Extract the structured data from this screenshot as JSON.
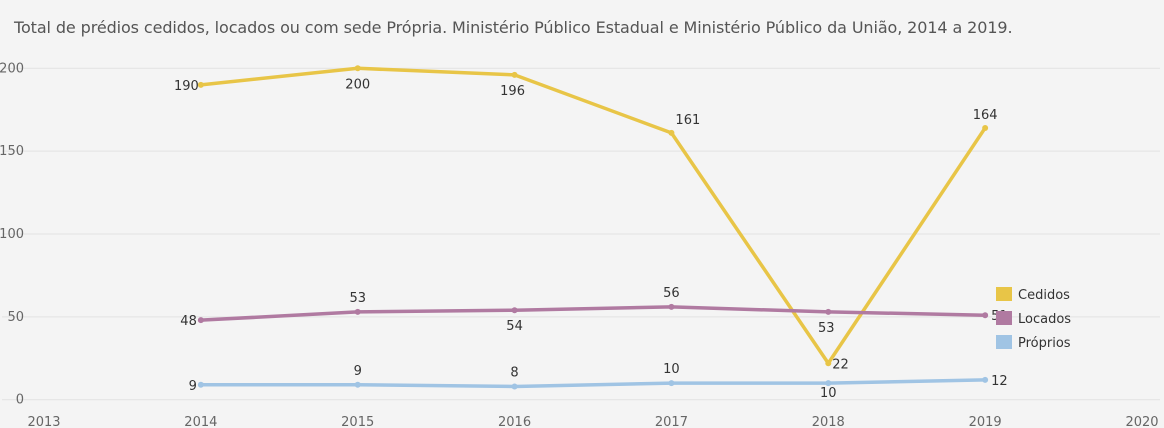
{
  "title": "Total de prédios cedidos, locados ou com sede Própria. Ministério Público Estadual e Ministério Público da União, 2014 a 2019.",
  "chart_data": {
    "type": "line",
    "title": "Total de prédios cedidos, locados ou com sede Própria. Ministério Público Estadual e Ministério Público da União, 2014 a 2019.",
    "xlabel": "",
    "ylabel": "",
    "x": [
      2014,
      2015,
      2016,
      2017,
      2018,
      2019
    ],
    "x_ticks": [
      "2013",
      "2014",
      "2015",
      "2016",
      "2017",
      "2018",
      "2019",
      "2020"
    ],
    "xlim": [
      2013,
      2020
    ],
    "y_ticks": [
      "0",
      "50",
      "100",
      "150",
      "200"
    ],
    "ylim": [
      -5,
      205
    ],
    "grid": true,
    "legend_position": "right",
    "series": [
      {
        "name": "Cedidos",
        "color": "#e8c547",
        "values": [
          190,
          200,
          196,
          161,
          22,
          164
        ]
      },
      {
        "name": "Locados",
        "color": "#b07aa1",
        "values": [
          48,
          53,
          54,
          56,
          53,
          51
        ]
      },
      {
        "name": "Próprios",
        "color": "#a0c4e4",
        "values": [
          9,
          9,
          8,
          10,
          10,
          12
        ]
      }
    ]
  }
}
